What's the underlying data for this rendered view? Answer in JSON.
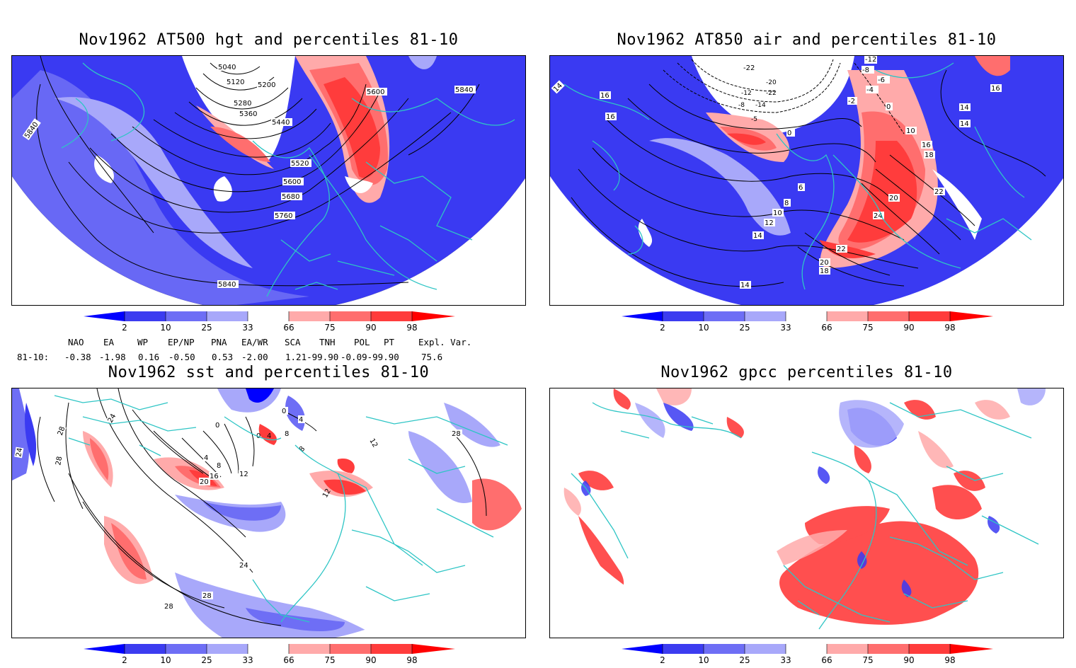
{
  "panels": [
    {
      "title": "Nov1962 AT500 hgt and percentiles 81-10",
      "contour_labels": [
        "5040",
        "5120",
        "5200",
        "5280",
        "5360",
        "5440",
        "5520",
        "5600",
        "5680",
        "5760",
        "5600",
        "5840",
        "5840",
        "5840"
      ]
    },
    {
      "title": "Nov1962 AT850 air and percentiles 81-10",
      "contour_labels": [
        "-22",
        "-12",
        "-10",
        "-8",
        "-6",
        "-4",
        "-2",
        "0",
        "2",
        "4",
        "6",
        "8",
        "10",
        "12",
        "14",
        "16",
        "18",
        "20",
        "22",
        "24",
        "-22",
        "-20",
        "-14",
        "-12",
        "-8",
        "-5",
        "0",
        "6",
        "8",
        "10",
        "12",
        "14",
        "14",
        "16",
        "16",
        "14",
        "14",
        "16",
        "18",
        "20",
        "22",
        "24",
        "22",
        "20",
        "18"
      ]
    },
    {
      "title": "Nov1962 sst and percentiles 81-10",
      "contour_labels": [
        "0",
        "0",
        "0",
        "4",
        "8",
        "12",
        "16",
        "20",
        "24",
        "28",
        "28",
        "24",
        "28",
        "28",
        "24",
        "4",
        "8",
        "10",
        "12",
        "16",
        "12"
      ]
    },
    {
      "title": "Nov1962 gpcc percentiles 81-10",
      "contour_labels": []
    }
  ],
  "colorbar": {
    "labels": [
      "2",
      "10",
      "25",
      "33",
      "66",
      "75",
      "90",
      "98"
    ],
    "colors": [
      "#0000ff",
      "#3c3cf0",
      "#6e6ef5",
      "#a8a8fa",
      "#ffffff",
      "#ffaaaa",
      "#ff6e6e",
      "#ff3c3c",
      "#ff0000"
    ]
  },
  "indices": {
    "headers": [
      "NAO",
      "EA",
      "WP",
      "EP/NP",
      "PNA",
      "EA/WR",
      "SCA",
      "TNH",
      "POL",
      "PT",
      "Expl. Var."
    ],
    "row_label": "81-10:",
    "values": [
      "-0.38",
      "-1.98",
      "0.16",
      "-0.50",
      "0.53",
      "-2.00",
      "1.21-99.90",
      "-0.09-99.90",
      "75.6"
    ]
  }
}
